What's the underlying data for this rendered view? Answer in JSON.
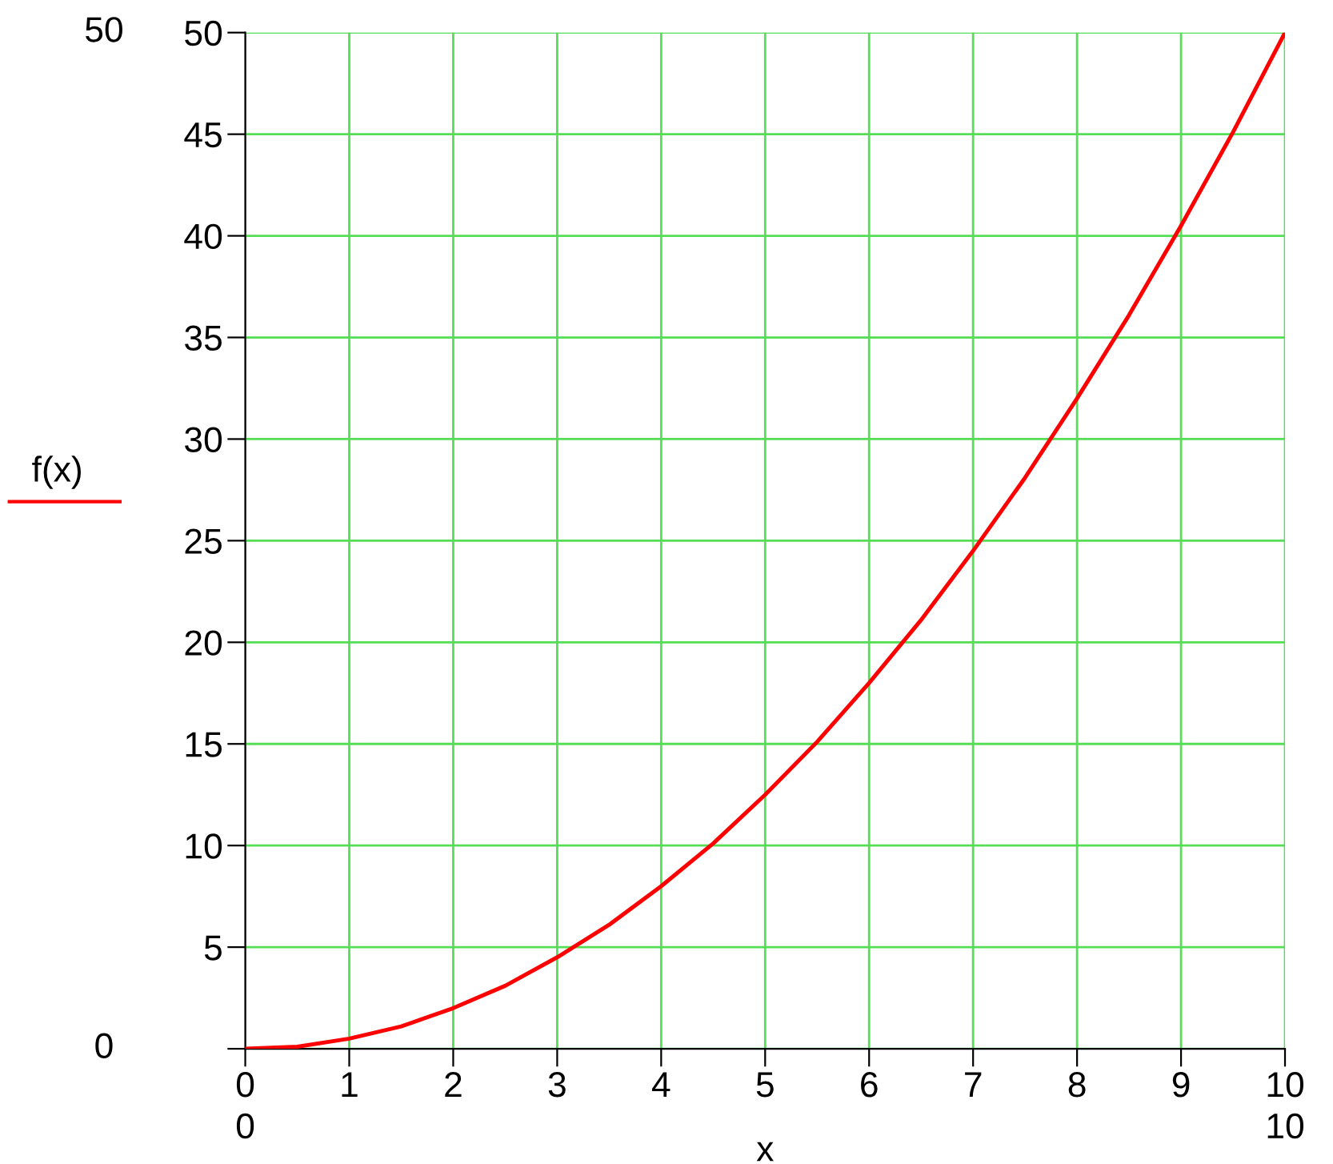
{
  "chart_data": {
    "type": "line",
    "xlabel": "x",
    "x": [
      0,
      0.5,
      1,
      1.5,
      2,
      2.5,
      3,
      3.5,
      4,
      4.5,
      5,
      5.5,
      6,
      6.5,
      7,
      7.5,
      8,
      8.5,
      9,
      9.5,
      10
    ],
    "series": [
      {
        "name": "f(x)",
        "color": "#ff0000",
        "values": [
          0,
          0.1,
          0.5,
          1.1,
          2,
          3.1,
          4.5,
          6.1,
          8,
          10.1,
          12.5,
          15.1,
          18,
          21.1,
          24.5,
          28.1,
          32,
          36.1,
          40.5,
          45.1,
          50
        ]
      }
    ],
    "xlim": [
      0,
      10
    ],
    "ylim": [
      0,
      50
    ],
    "xticks": [
      0,
      1,
      2,
      3,
      4,
      5,
      6,
      7,
      8,
      9,
      10
    ],
    "yticks": [
      {
        "value": 0,
        "label": null
      },
      5,
      10,
      15,
      20,
      25,
      30,
      35,
      40,
      45,
      50
    ],
    "grid": true,
    "legend": "left",
    "line_style": "solid",
    "marker": "none",
    "annotations": [
      "50",
      "0",
      "0",
      "10"
    ]
  }
}
